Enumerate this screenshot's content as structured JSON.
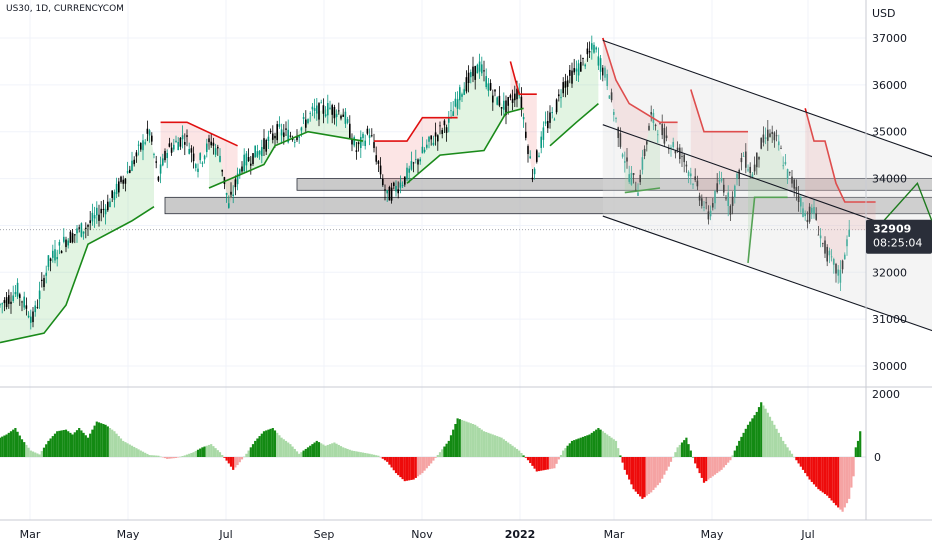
{
  "header": {
    "symbol_line": "US30, 1D, CURRENCYCOM"
  },
  "colors": {
    "bull": "#089981",
    "bear": "#000000",
    "stop_up": "#1a8a1a",
    "stop_down": "#e01010",
    "hist_pos_strong": "#138a13",
    "hist_pos_weak": "#a9d9a6",
    "hist_neg_strong": "#ee0b0b",
    "hist_neg_weak": "#f5a3a3",
    "zone_fill": "#b8b8b8",
    "price_tag": "#2a2e39"
  },
  "chart_data": {
    "type": "candlestick",
    "currency_label": "USD",
    "y_ticks": [
      37000,
      36000,
      35000,
      34000,
      33000,
      32000,
      31000,
      30000
    ],
    "y_tick_labels": [
      "37000",
      "36000",
      "35000",
      "34000",
      "33000",
      "32000",
      "31000",
      "30000"
    ],
    "x_tick_labels": [
      {
        "label": "Mar",
        "bold": false
      },
      {
        "label": "May",
        "bold": false
      },
      {
        "label": "Jul",
        "bold": false
      },
      {
        "label": "Sep",
        "bold": false
      },
      {
        "label": "Nov",
        "bold": false
      },
      {
        "label": "2022",
        "bold": true
      },
      {
        "label": "Mar",
        "bold": false
      },
      {
        "label": "May",
        "bold": false
      },
      {
        "label": "Jul",
        "bold": false
      }
    ],
    "last_price": "32909",
    "countdown": "08:25:04",
    "oscillator": {
      "ticks": [
        "2000",
        "0"
      ]
    },
    "price_path": [
      [
        0,
        31300
      ],
      [
        8,
        31600
      ],
      [
        15,
        31000
      ],
      [
        22,
        32200
      ],
      [
        30,
        32700
      ],
      [
        40,
        33000
      ],
      [
        50,
        33500
      ],
      [
        60,
        34300
      ],
      [
        68,
        35000
      ],
      [
        72,
        34000
      ],
      [
        76,
        34600
      ],
      [
        84,
        34900
      ],
      [
        90,
        34300
      ],
      [
        96,
        34800
      ],
      [
        100,
        34500
      ],
      [
        104,
        33400
      ],
      [
        110,
        34300
      ],
      [
        118,
        34600
      ],
      [
        126,
        35000
      ],
      [
        134,
        34900
      ],
      [
        142,
        35400
      ],
      [
        150,
        35500
      ],
      [
        156,
        35400
      ],
      [
        162,
        34600
      ],
      [
        168,
        35000
      ],
      [
        176,
        33600
      ],
      [
        184,
        34000
      ],
      [
        190,
        34400
      ],
      [
        196,
        34800
      ],
      [
        204,
        35200
      ],
      [
        210,
        35900
      ],
      [
        218,
        36400
      ],
      [
        224,
        35800
      ],
      [
        230,
        35500
      ],
      [
        236,
        35900
      ],
      [
        242,
        34100
      ],
      [
        248,
        35100
      ],
      [
        252,
        35400
      ],
      [
        256,
        36000
      ],
      [
        264,
        36400
      ],
      [
        270,
        36800
      ],
      [
        276,
        36100
      ],
      [
        282,
        34800
      ],
      [
        286,
        34100
      ],
      [
        290,
        33800
      ],
      [
        296,
        35300
      ],
      [
        304,
        34800
      ],
      [
        310,
        34500
      ],
      [
        316,
        33900
      ],
      [
        322,
        33200
      ],
      [
        328,
        34000
      ],
      [
        332,
        33400
      ],
      [
        338,
        34500
      ],
      [
        342,
        34100
      ],
      [
        346,
        34700
      ],
      [
        350,
        35000
      ],
      [
        354,
        34700
      ],
      [
        358,
        34100
      ],
      [
        362,
        33800
      ],
      [
        366,
        33200
      ],
      [
        370,
        33300
      ],
      [
        374,
        32600
      ],
      [
        378,
        32200
      ],
      [
        382,
        31900
      ],
      [
        386,
        32900
      ]
    ],
    "supertrend_up": [
      [
        [
          0,
          30500
        ],
        [
          20,
          30700
        ],
        [
          30,
          31300
        ],
        [
          40,
          32600
        ],
        [
          60,
          33100
        ],
        [
          70,
          33400
        ]
      ],
      [
        [
          95,
          33800
        ],
        [
          120,
          34300
        ],
        [
          125,
          34700
        ],
        [
          140,
          35000
        ],
        [
          165,
          34800
        ]
      ],
      [
        [
          185,
          33900
        ],
        [
          200,
          34500
        ],
        [
          220,
          34600
        ],
        [
          230,
          35400
        ],
        [
          238,
          35500
        ]
      ],
      [
        [
          250,
          34700
        ],
        [
          262,
          35200
        ],
        [
          272,
          35600
        ]
      ],
      [
        [
          284,
          33700
        ],
        [
          300,
          33800
        ]
      ],
      [
        [
          340,
          32200
        ],
        [
          343,
          33600
        ],
        [
          358,
          33600
        ]
      ]
    ],
    "supertrend_down": [
      [
        [
          73,
          35200
        ],
        [
          85,
          35200
        ],
        [
          108,
          34700
        ]
      ],
      [
        [
          170,
          34800
        ],
        [
          185,
          34800
        ],
        [
          192,
          35300
        ],
        [
          208,
          35300
        ]
      ],
      [
        [
          232,
          36500
        ],
        [
          236,
          35800
        ],
        [
          244,
          35800
        ]
      ],
      [
        [
          274,
          37000
        ],
        [
          280,
          36100
        ],
        [
          286,
          35600
        ],
        [
          300,
          35200
        ],
        [
          308,
          35200
        ]
      ],
      [
        [
          314,
          35900
        ],
        [
          320,
          35000
        ],
        [
          340,
          35000
        ]
      ],
      [
        [
          366,
          35500
        ],
        [
          370,
          34800
        ],
        [
          375,
          34800
        ],
        [
          380,
          33900
        ],
        [
          384,
          33500
        ],
        [
          398,
          33500
        ]
      ]
    ],
    "channel_upper": [
      [
        274,
        36950
      ],
      [
        470,
        33700
      ]
    ],
    "channel_mid": [
      [
        274,
        35150
      ],
      [
        470,
        31900
      ]
    ],
    "channel_lower": [
      [
        274,
        33200
      ],
      [
        470,
        30000
      ]
    ],
    "horizontal_zones": [
      {
        "from": 135,
        "to": 470,
        "y_low": 33750,
        "y_high": 34000
      },
      {
        "from": 75,
        "to": 470,
        "y_low": 33250,
        "y_high": 33600
      }
    ],
    "forecast_path": [
      [
        396,
        32800
      ],
      [
        417,
        33900
      ],
      [
        440,
        31100
      ]
    ],
    "oscillator_bars": [
      [
        0,
        600,
        "s"
      ],
      [
        3,
        700,
        "s"
      ],
      [
        7,
        900,
        "s"
      ],
      [
        10,
        550,
        "s"
      ],
      [
        14,
        200,
        "w"
      ],
      [
        18,
        80,
        "w"
      ],
      [
        22,
        500,
        "s"
      ],
      [
        26,
        800,
        "s"
      ],
      [
        30,
        850,
        "s"
      ],
      [
        33,
        700,
        "s"
      ],
      [
        36,
        900,
        "s"
      ],
      [
        40,
        600,
        "s"
      ],
      [
        44,
        1100,
        "s"
      ],
      [
        48,
        1000,
        "s"
      ],
      [
        52,
        800,
        "w"
      ],
      [
        56,
        500,
        "w"
      ],
      [
        60,
        350,
        "w"
      ],
      [
        64,
        200,
        "w"
      ],
      [
        68,
        60,
        "w"
      ],
      [
        72,
        40,
        "w"
      ],
      [
        76,
        -60,
        "w"
      ],
      [
        80,
        -30,
        "w"
      ],
      [
        84,
        50,
        "w"
      ],
      [
        88,
        150,
        "w"
      ],
      [
        92,
        300,
        "s"
      ],
      [
        96,
        400,
        "w"
      ],
      [
        100,
        150,
        "w"
      ],
      [
        104,
        -200,
        "s"
      ],
      [
        106,
        -400,
        "s"
      ],
      [
        108,
        -250,
        "w"
      ],
      [
        112,
        100,
        "w"
      ],
      [
        116,
        500,
        "s"
      ],
      [
        120,
        800,
        "s"
      ],
      [
        124,
        900,
        "s"
      ],
      [
        128,
        600,
        "w"
      ],
      [
        132,
        400,
        "w"
      ],
      [
        136,
        100,
        "w"
      ],
      [
        140,
        300,
        "s"
      ],
      [
        144,
        500,
        "s"
      ],
      [
        148,
        350,
        "w"
      ],
      [
        152,
        450,
        "w"
      ],
      [
        156,
        300,
        "w"
      ],
      [
        160,
        200,
        "w"
      ],
      [
        164,
        150,
        "w"
      ],
      [
        168,
        100,
        "w"
      ],
      [
        172,
        40,
        "w"
      ],
      [
        176,
        -150,
        "s"
      ],
      [
        180,
        -500,
        "s"
      ],
      [
        184,
        -750,
        "s"
      ],
      [
        188,
        -700,
        "s"
      ],
      [
        192,
        -500,
        "w"
      ],
      [
        196,
        -200,
        "w"
      ],
      [
        200,
        150,
        "w"
      ],
      [
        204,
        500,
        "s"
      ],
      [
        208,
        1200,
        "s"
      ],
      [
        212,
        1100,
        "w"
      ],
      [
        216,
        1000,
        "w"
      ],
      [
        220,
        800,
        "w"
      ],
      [
        224,
        700,
        "w"
      ],
      [
        228,
        600,
        "w"
      ],
      [
        232,
        400,
        "w"
      ],
      [
        236,
        200,
        "w"
      ],
      [
        240,
        -100,
        "s"
      ],
      [
        244,
        -450,
        "s"
      ],
      [
        248,
        -400,
        "s"
      ],
      [
        252,
        -350,
        "w"
      ],
      [
        256,
        200,
        "w"
      ],
      [
        260,
        500,
        "s"
      ],
      [
        264,
        600,
        "s"
      ],
      [
        268,
        700,
        "s"
      ],
      [
        272,
        900,
        "s"
      ],
      [
        276,
        700,
        "w"
      ],
      [
        280,
        500,
        "w"
      ],
      [
        284,
        -400,
        "s"
      ],
      [
        288,
        -1000,
        "s"
      ],
      [
        292,
        -1300,
        "s"
      ],
      [
        296,
        -1100,
        "w"
      ],
      [
        300,
        -800,
        "w"
      ],
      [
        304,
        -300,
        "w"
      ],
      [
        308,
        300,
        "w"
      ],
      [
        312,
        600,
        "s"
      ],
      [
        316,
        -200,
        "s"
      ],
      [
        320,
        -800,
        "s"
      ],
      [
        324,
        -600,
        "w"
      ],
      [
        328,
        -400,
        "w"
      ],
      [
        332,
        -100,
        "w"
      ],
      [
        336,
        500,
        "s"
      ],
      [
        340,
        1000,
        "s"
      ],
      [
        344,
        1400,
        "s"
      ],
      [
        346,
        1700,
        "s"
      ],
      [
        348,
        1500,
        "w"
      ],
      [
        352,
        1000,
        "w"
      ],
      [
        356,
        500,
        "w"
      ],
      [
        360,
        100,
        "w"
      ],
      [
        364,
        -300,
        "s"
      ],
      [
        368,
        -700,
        "s"
      ],
      [
        372,
        -1000,
        "s"
      ],
      [
        376,
        -1200,
        "s"
      ],
      [
        380,
        -1500,
        "s"
      ],
      [
        383,
        -1700,
        "w"
      ],
      [
        386,
        -1300,
        "w"
      ],
      [
        388,
        -600,
        "w"
      ],
      [
        389,
        300,
        "s"
      ],
      [
        390,
        500,
        "s"
      ],
      [
        391,
        800,
        "s"
      ]
    ]
  }
}
